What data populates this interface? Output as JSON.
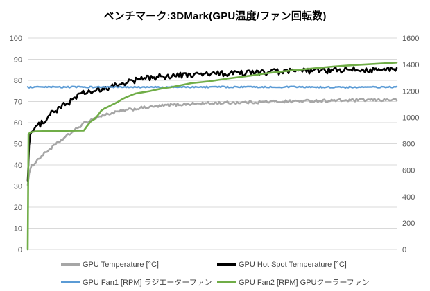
{
  "title": "ベンチマーク:3DMark(GPU温度/ファン回転数)",
  "colors": {
    "background": "#ffffff",
    "gridline": "#d9d9d9",
    "axis_text": "#595959",
    "legend_text": "#404040",
    "title_text": "#000000"
  },
  "chart_data": {
    "type": "line",
    "title": "ベンチマーク:3DMark(GPU温度/ファン回転数)",
    "x_axis": {
      "label": "",
      "tick_labels_visible": false,
      "note": "time axis, no tick labels shown"
    },
    "left_axis": {
      "min": 0,
      "max": 100,
      "step": 10,
      "ticks": [
        0,
        10,
        20,
        30,
        40,
        50,
        60,
        70,
        80,
        90,
        100
      ],
      "unit": "°C"
    },
    "right_axis": {
      "min": 0,
      "max": 1600,
      "step": 200,
      "ticks": [
        0,
        200,
        400,
        600,
        800,
        1000,
        1200,
        1400,
        1600
      ],
      "unit": "RPM"
    },
    "grid": "horizontal-only",
    "legend_position": "bottom",
    "series": [
      {
        "name": "GPU Temperature [°C]",
        "axis": "left",
        "unit": "°C",
        "color": "#a6a6a6",
        "stroke": 2.6,
        "noise": 0.65,
        "points": [
          [
            0,
            31
          ],
          [
            0.004,
            36
          ],
          [
            0.011,
            39.5
          ],
          [
            0.021,
            41.5
          ],
          [
            0.036,
            44
          ],
          [
            0.051,
            46.3
          ],
          [
            0.066,
            48.3
          ],
          [
            0.081,
            50.3
          ],
          [
            0.096,
            52.3
          ],
          [
            0.111,
            54.3
          ],
          [
            0.126,
            56.3
          ],
          [
            0.141,
            58.2
          ],
          [
            0.156,
            60
          ],
          [
            0.171,
            61.3
          ],
          [
            0.19,
            62.6
          ],
          [
            0.208,
            63.6
          ],
          [
            0.227,
            64.5
          ],
          [
            0.255,
            65.5
          ],
          [
            0.283,
            66.3
          ],
          [
            0.311,
            67
          ],
          [
            0.349,
            67.7
          ],
          [
            0.386,
            68.3
          ],
          [
            0.433,
            68.8
          ],
          [
            0.48,
            69.1
          ],
          [
            0.54,
            69.4
          ],
          [
            0.6,
            69.6
          ],
          [
            0.66,
            69.9
          ],
          [
            0.72,
            70.1
          ],
          [
            0.78,
            70.3
          ],
          [
            0.85,
            70.5
          ],
          [
            0.92,
            70.7
          ],
          [
            1,
            70.8
          ]
        ]
      },
      {
        "name": "GPU Hot Spot Temperature [°C]",
        "axis": "left",
        "unit": "°C",
        "color": "#000000",
        "stroke": 2.6,
        "noise": 1.4,
        "points": [
          [
            0,
            33
          ],
          [
            0.002,
            45
          ],
          [
            0.005,
            54
          ],
          [
            0.013,
            56
          ],
          [
            0.021,
            57.5
          ],
          [
            0.04,
            60
          ],
          [
            0.049,
            62
          ],
          [
            0.058,
            64.5
          ],
          [
            0.062,
            63.5
          ],
          [
            0.068,
            65.8
          ],
          [
            0.075,
            65.2
          ],
          [
            0.083,
            66.5
          ],
          [
            0.094,
            67.8
          ],
          [
            0.105,
            68.8
          ],
          [
            0.114,
            70
          ],
          [
            0.133,
            72.5
          ],
          [
            0.152,
            74
          ],
          [
            0.171,
            74.6
          ],
          [
            0.19,
            75
          ],
          [
            0.208,
            75.6
          ],
          [
            0.227,
            77
          ],
          [
            0.246,
            78
          ],
          [
            0.265,
            79
          ],
          [
            0.283,
            79.6
          ],
          [
            0.302,
            80.5
          ],
          [
            0.321,
            81
          ],
          [
            0.349,
            81.6
          ],
          [
            0.377,
            82
          ],
          [
            0.415,
            82.4
          ],
          [
            0.452,
            82.6
          ],
          [
            0.49,
            83
          ],
          [
            0.546,
            83.2
          ],
          [
            0.602,
            83.6
          ],
          [
            0.659,
            84
          ],
          [
            0.715,
            84.2
          ],
          [
            0.771,
            84.5
          ],
          [
            0.827,
            84.7
          ],
          [
            0.883,
            85
          ],
          [
            0.94,
            85
          ],
          [
            1,
            85
          ]
        ]
      },
      {
        "name": "GPU Fan1 [RPM] ラジエーターファン",
        "axis": "right",
        "unit": "RPM",
        "color": "#5b9bd5",
        "stroke": 2.4,
        "noise": 5,
        "points": [
          [
            0,
            1228
          ],
          [
            0.15,
            1230
          ],
          [
            0.3,
            1228
          ],
          [
            0.5,
            1230
          ],
          [
            0.7,
            1230
          ],
          [
            0.85,
            1228
          ],
          [
            1,
            1229
          ]
        ]
      },
      {
        "name": "GPU Fan2 [RPM] GPUクーラーファン",
        "axis": "right",
        "unit": "RPM",
        "color": "#70ad47",
        "stroke": 2.6,
        "noise": 0,
        "points": [
          [
            0,
            0
          ],
          [
            0.002,
            870
          ],
          [
            0.006,
            886
          ],
          [
            0.02,
            894
          ],
          [
            0.06,
            897
          ],
          [
            0.152,
            900
          ],
          [
            0.161,
            935
          ],
          [
            0.171,
            970
          ],
          [
            0.18,
            985
          ],
          [
            0.19,
            1015
          ],
          [
            0.199,
            1050
          ],
          [
            0.208,
            1067
          ],
          [
            0.218,
            1080
          ],
          [
            0.227,
            1093
          ],
          [
            0.236,
            1105
          ],
          [
            0.246,
            1120
          ],
          [
            0.255,
            1136
          ],
          [
            0.265,
            1150
          ],
          [
            0.283,
            1171
          ],
          [
            0.293,
            1181
          ],
          [
            0.311,
            1189
          ],
          [
            0.33,
            1198
          ],
          [
            0.349,
            1210
          ],
          [
            0.368,
            1221
          ],
          [
            0.386,
            1227
          ],
          [
            0.405,
            1238
          ],
          [
            0.443,
            1259
          ],
          [
            0.49,
            1272
          ],
          [
            0.546,
            1295
          ],
          [
            0.602,
            1315
          ],
          [
            0.659,
            1338
          ],
          [
            0.715,
            1355
          ],
          [
            0.771,
            1370
          ],
          [
            0.827,
            1385
          ],
          [
            0.883,
            1396
          ],
          [
            0.94,
            1405
          ],
          [
            1,
            1415
          ]
        ]
      }
    ]
  }
}
